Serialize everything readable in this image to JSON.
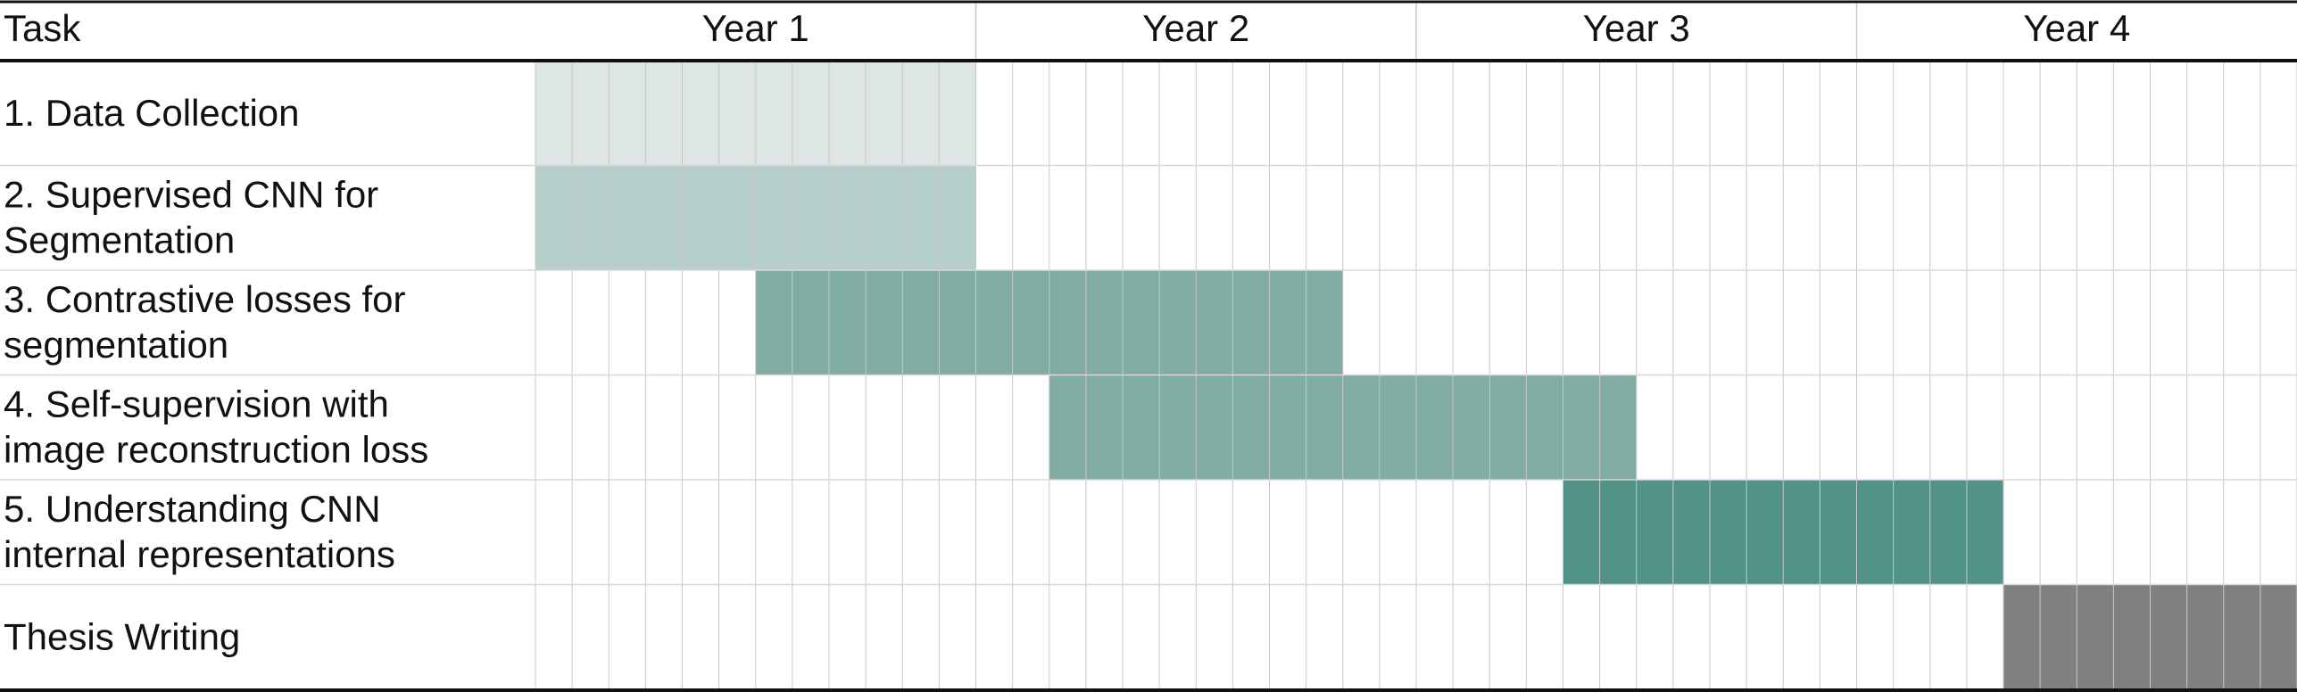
{
  "chart_data": {
    "type": "gantt",
    "header": {
      "task_column": "Task",
      "years": [
        "Year 1",
        "Year 2",
        "Year 3",
        "Year 4"
      ]
    },
    "months_per_year": 12,
    "months_total": 48,
    "tasks": [
      {
        "lines": [
          "1. Data Collection"
        ],
        "start_month": 0,
        "end_month": 12,
        "color": "#dde6e5"
      },
      {
        "lines": [
          "2. Supervised CNN for",
          "Segmentation"
        ],
        "start_month": 0,
        "end_month": 12,
        "color": "#b6cfcb"
      },
      {
        "lines": [
          "3. Contrastive losses for",
          "segmentation"
        ],
        "start_month": 6,
        "end_month": 22,
        "color": "#80aca3"
      },
      {
        "lines": [
          "4. Self-supervision with",
          "image reconstruction loss"
        ],
        "start_month": 14,
        "end_month": 30,
        "color": "#80aca3"
      },
      {
        "lines": [
          "5. Understanding CNN",
          "internal representations"
        ],
        "start_month": 28,
        "end_month": 40,
        "color": "#529389"
      },
      {
        "lines": [
          "Thesis Writing"
        ],
        "start_month": 40,
        "end_month": 48,
        "color": "#808080"
      }
    ]
  }
}
